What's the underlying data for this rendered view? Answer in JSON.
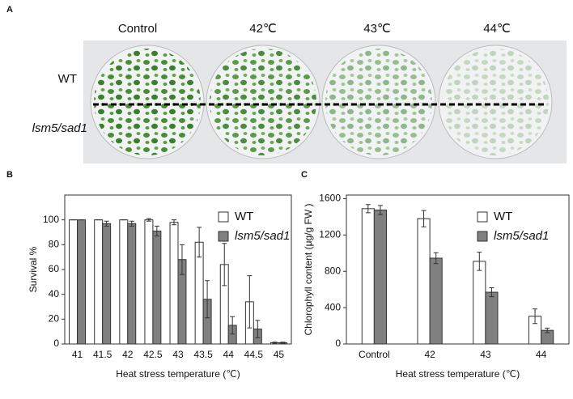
{
  "panel_a": {
    "label": "A",
    "columns": [
      "Control",
      "42℃",
      "43℃",
      "44℃"
    ],
    "rows": [
      "WT",
      "lsm5/sad1"
    ]
  },
  "chart_data": [
    {
      "type": "bar",
      "panel_label": "B",
      "x_label": "Heat stress temperature (℃)",
      "y_label": "Survival %",
      "categories": [
        "41",
        "41.5",
        "42",
        "42.5",
        "43",
        "43.5",
        "44",
        "44.5",
        "45"
      ],
      "series": [
        {
          "name": "WT",
          "color": "#ffffff",
          "values": [
            100,
            100,
            100,
            100,
            98,
            82,
            64,
            34,
            1
          ],
          "error": [
            0,
            0,
            0,
            1,
            2,
            12,
            17,
            21,
            0.5
          ]
        },
        {
          "name": "lsm5/sad1",
          "color": "#808080",
          "values": [
            100,
            97,
            97,
            91,
            68,
            36,
            15,
            12,
            1
          ],
          "error": [
            0,
            2,
            2,
            4,
            12,
            15,
            7,
            7,
            0.5
          ]
        }
      ],
      "ylim": [
        0,
        120
      ],
      "yticks": [
        0,
        20,
        40,
        60,
        80,
        100
      ]
    },
    {
      "type": "bar",
      "panel_label": "C",
      "x_label": "Heat stress temperature (℃)",
      "y_label": "Chlorophyll content (μg/g FW )",
      "categories": [
        "Control",
        "42",
        "43",
        "44"
      ],
      "series": [
        {
          "name": "WT",
          "color": "#ffffff",
          "values": [
            1490,
            1380,
            910,
            305
          ],
          "error": [
            45,
            90,
            100,
            80
          ]
        },
        {
          "name": "lsm5/sad1",
          "color": "#808080",
          "values": [
            1475,
            945,
            570,
            150
          ],
          "error": [
            50,
            60,
            50,
            25
          ]
        }
      ],
      "ylim": [
        0,
        1640
      ],
      "yticks": [
        0,
        400,
        800,
        1200,
        1600
      ]
    }
  ]
}
